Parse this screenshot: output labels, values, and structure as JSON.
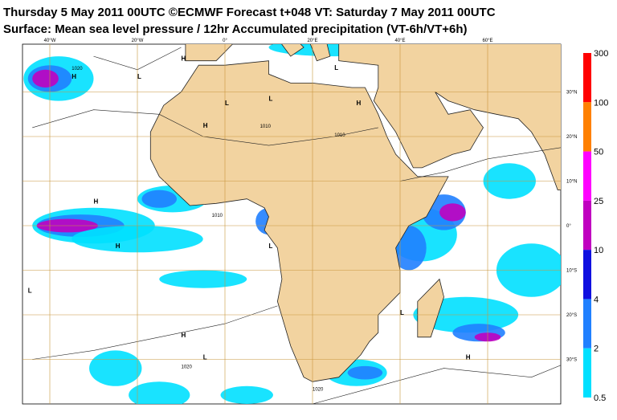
{
  "header": {
    "title": "Thursday 5 May 2011 00UTC ©ECMWF Forecast t+048 VT: Saturday 7 May 2011 00UTC",
    "subtitle": "Surface: Mean sea level pressure / 12hr Accumulated precipitation (VT-6h/VT+6h)"
  },
  "map": {
    "longitude_labels": [
      "40°W",
      "20°W",
      "0°",
      "20°E",
      "40°E",
      "60°E"
    ],
    "latitude_labels": [
      "30°N",
      "20°N",
      "10°N",
      "0°",
      "10°S",
      "20°S",
      "30°S"
    ],
    "pressure_centers": [
      "H",
      "L",
      "H",
      "L",
      "H",
      "L",
      "H",
      "L",
      "H",
      "L",
      "H",
      "L",
      "H",
      "L",
      "H",
      "L"
    ],
    "isobar_labels": [
      "1020",
      "1010",
      "1010",
      "1020",
      "1010",
      "1020"
    ]
  },
  "legend": {
    "levels": [
      300,
      100,
      50,
      25,
      10,
      4,
      2,
      0.5
    ],
    "colors": [
      "#ff0000",
      "#ff8000",
      "#ff00ff",
      "#c000c0",
      "#1010e0",
      "#2080ff",
      "#00e0ff"
    ]
  }
}
